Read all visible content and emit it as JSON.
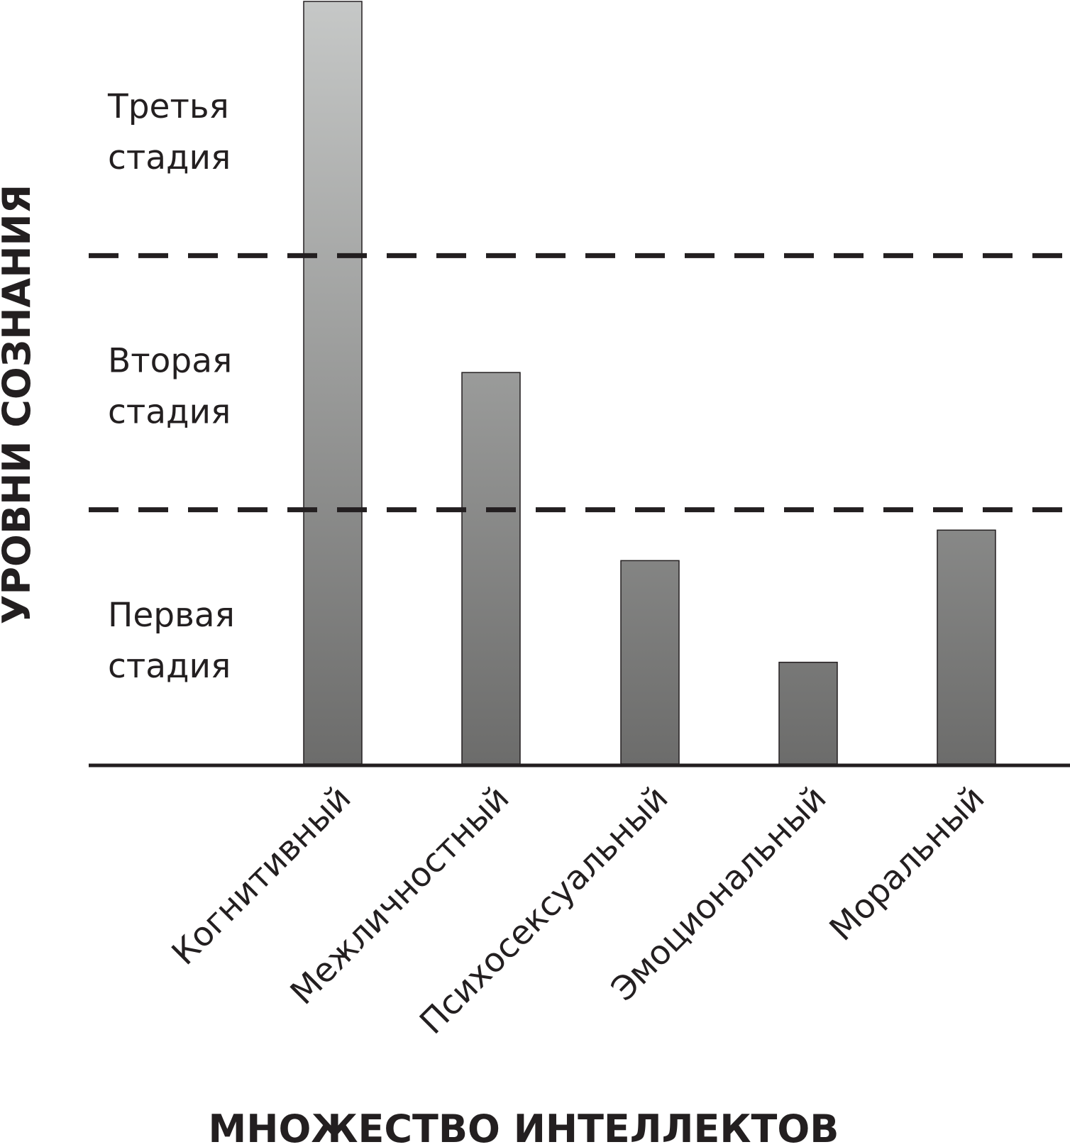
{
  "chart_data": {
    "type": "bar",
    "xlabel": "МНОЖЕСТВО ИНТЕЛЛЕКТОВ",
    "ylabel": "УРОВНИ СОЗНАНИЯ",
    "categories": [
      "Когнитивный",
      "Межличностный",
      "Психосексуальный",
      "Эмоциональный",
      "Моральный"
    ],
    "values": [
      3.0,
      1.54,
      0.8,
      0.4,
      0.92
    ],
    "ylim": [
      0,
      3.0
    ],
    "stage_boundaries": [
      1.0,
      2.0
    ],
    "stages": [
      {
        "label": [
          "Первая",
          "стадия"
        ],
        "center": 0.5
      },
      {
        "label": [
          "Вторая",
          "стадия"
        ],
        "center": 1.5
      },
      {
        "label": [
          "Третья",
          "стадия"
        ],
        "center": 2.5
      }
    ],
    "grid": false,
    "bar_fill": "gradient gray (light at top, dark at bottom)"
  },
  "colors": {
    "bar_top": "#c6c8c7",
    "bar_bottom": "#6c6c6b",
    "bar_stroke": "#231f20",
    "axis": "#231f20",
    "text": "#231f20"
  }
}
